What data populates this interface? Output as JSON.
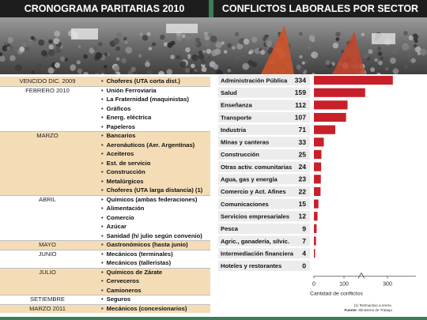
{
  "header": {
    "left_title": "CRONOGRAMA PARITARIAS 2010",
    "right_title": "CONFLICTOS LABORALES POR SECTOR"
  },
  "colors": {
    "bar": "#c8202a",
    "header_bg": "#1d1d1d",
    "band": "#f4dcb6",
    "label_box": "#ececec"
  },
  "timeline": [
    {
      "month": "VENCIDO DIC. 2009",
      "item": "Choferes (UTA corta dist.)",
      "band": true
    },
    {
      "month": "FEBRERO 2010",
      "item": "Unión Ferroviaria",
      "band": false
    },
    {
      "month": "",
      "item": "La Fraternidad  (maquinistas)",
      "band": false
    },
    {
      "month": "",
      "item": "Gráficos",
      "band": false
    },
    {
      "month": "",
      "item": "Energ. eléctrica",
      "band": false
    },
    {
      "month": "",
      "item": "Papeleros",
      "band": false
    },
    {
      "month": "MARZO",
      "item": "Bancarios",
      "band": true
    },
    {
      "month": "",
      "item": "Aeronáuticos (Aer. Argentinas)",
      "band": true
    },
    {
      "month": "",
      "item": "Aceiteros",
      "band": true
    },
    {
      "month": "",
      "item": "Est. de servicio",
      "band": true
    },
    {
      "month": "",
      "item": "Construcción",
      "band": true
    },
    {
      "month": "",
      "item": "Metalúrgicos",
      "band": true
    },
    {
      "month": "",
      "item": "Choferes (UTA larga distancia) (1)",
      "band": true
    },
    {
      "month": "ABRIL",
      "item": "Químicos (ambas federaciones)",
      "band": false
    },
    {
      "month": "",
      "item": "Alimentación",
      "band": false
    },
    {
      "month": "",
      "item": "Comercio",
      "band": false
    },
    {
      "month": "",
      "item": "Azúcar",
      "band": false
    },
    {
      "month": "",
      "item": "Sanidad (h/ julio según convenio)",
      "band": false
    },
    {
      "month": "MAYO",
      "item": "Gastronómicos (hasta junio)",
      "band": true
    },
    {
      "month": "JUNIO",
      "item": "Mecánicos (terminales)",
      "band": false
    },
    {
      "month": "",
      "item": "Mecánicos (talleristas)",
      "band": false
    },
    {
      "month": "JULIO",
      "item": "Químicos de Zárate",
      "band": true
    },
    {
      "month": "",
      "item": "Cerveceros",
      "band": true
    },
    {
      "month": "",
      "item": "Camioneros",
      "band": true
    },
    {
      "month": "SETIEMBRE",
      "item": "Seguros",
      "band": false
    },
    {
      "month": "MARZO 2011",
      "item": "Mecánicos (concesionarios)",
      "band": true
    }
  ],
  "chart_data": {
    "type": "bar",
    "orientation": "horizontal",
    "categories": [
      "Administración Pública",
      "Salud",
      "Enseñanza",
      "Transporte",
      "Industria",
      "Minas y canteras",
      "Construcción",
      "Otras activ. comunitarias",
      "Agua, gas y energía",
      "Comercio y Act. Afines",
      "Comunicaciones",
      "Servicios empresariales",
      "Pesca",
      "Agric., ganadería, silvic.",
      "Intermediación financiera",
      "Hoteles y restorantes"
    ],
    "values": [
      334,
      159,
      112,
      107,
      71,
      33,
      25,
      24,
      23,
      22,
      15,
      12,
      9,
      7,
      4,
      0
    ],
    "xlabel": "Cantidad de conflictos",
    "xticks": [
      "0",
      "100",
      "300"
    ],
    "axis_break": true,
    "grid": false
  },
  "footnote": {
    "line1": "(1) Retroactivo a enero.",
    "line2_label": "Fuente:",
    "line2_value": "Ministerio de Trabajo"
  }
}
